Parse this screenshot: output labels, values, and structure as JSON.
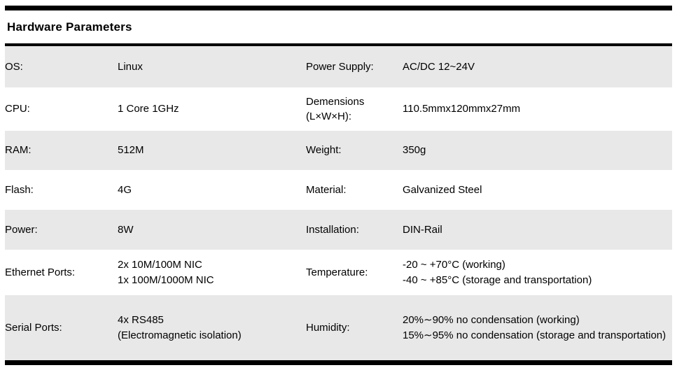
{
  "section": {
    "title": "Hardware Parameters"
  },
  "colors": {
    "stripe": "#e8e8e8",
    "rule": "#000000",
    "text": "#000000",
    "background": "#ffffff"
  },
  "table": {
    "rows": [
      {
        "l_label": "OS:",
        "l_value": "Linux",
        "r_label": "Power Supply:",
        "r_value": "AC/DC 12~24V"
      },
      {
        "l_label": "CPU:",
        "l_value": "1 Core 1GHz",
        "r_label": "Demensions\n(L×W×H):",
        "r_value": "110.5mmx120mmx27mm"
      },
      {
        "l_label": "RAM:",
        "l_value": "512M",
        "r_label": "Weight:",
        "r_value": "350g"
      },
      {
        "l_label": "Flash:",
        "l_value": "4G",
        "r_label": "Material:",
        "r_value": "Galvanized Steel"
      },
      {
        "l_label": "Power:",
        "l_value": "8W",
        "r_label": "Installation:",
        "r_value": "DIN-Rail"
      },
      {
        "l_label": "Ethernet Ports:",
        "l_value": "2x 10M/100M NIC\n1x 100M/1000M NIC",
        "r_label": "Temperature:",
        "r_value": "-20 ~ +70°C (working)\n-40 ~ +85°C (storage and transportation)"
      },
      {
        "l_label": "Serial Ports:",
        "l_value": "4x RS485\n(Electromagnetic isolation)",
        "r_label": "Humidity:",
        "r_value": "20%∼90% no condensation (working)\n15%∼95% no condensation (storage and transportation)"
      }
    ]
  }
}
